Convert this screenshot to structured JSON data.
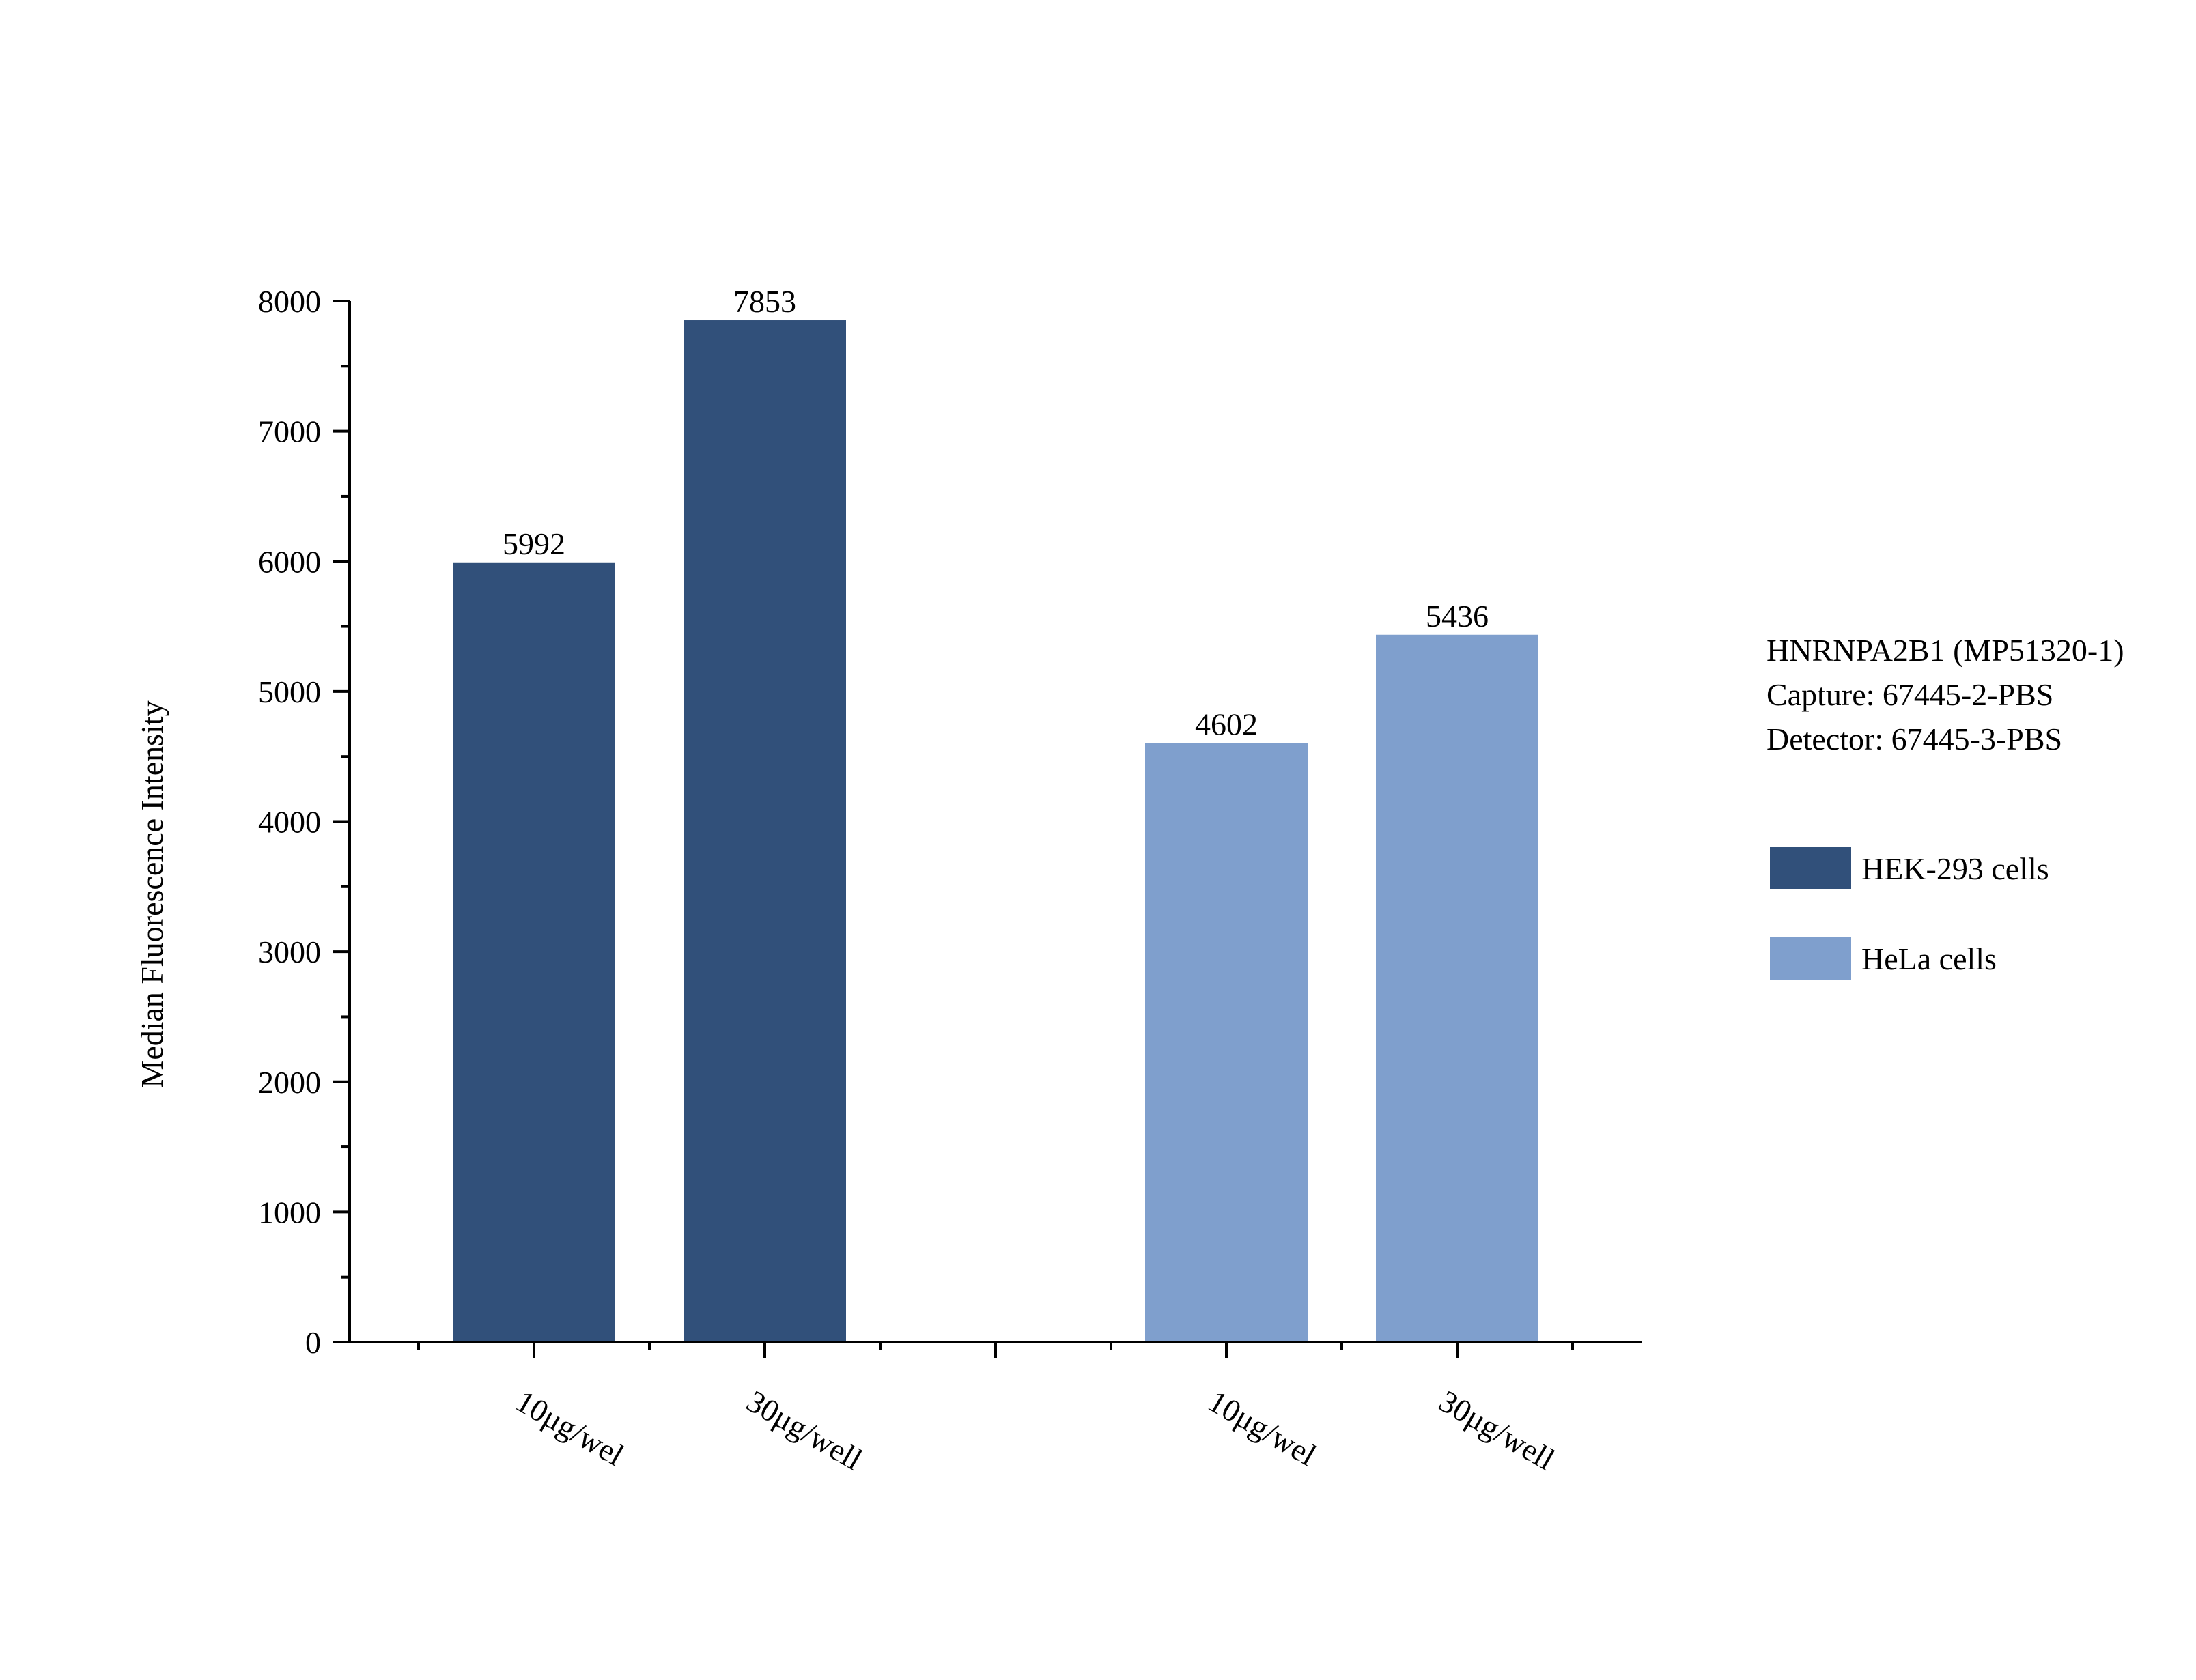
{
  "chart_data": {
    "type": "bar",
    "ylabel": "Median Fluorescence Intensity",
    "xlabel": "",
    "ylim": [
      0,
      8000
    ],
    "yticks": [
      0,
      1000,
      2000,
      3000,
      4000,
      5000,
      6000,
      7000,
      8000
    ],
    "grid": false,
    "legend_placement": "right",
    "annotations": [
      "HNRNPA2B1 (MP51320-1)",
      "Capture: 67445-2-PBS",
      "Detector: 67445-3-PBS"
    ],
    "groups": [
      {
        "name": "HEK-293 cells",
        "color": "#31507a",
        "categories": [
          "10μg/wel",
          "30μg/well"
        ],
        "values": [
          5992,
          7853
        ],
        "value_labels": [
          "5992",
          "7853"
        ]
      },
      {
        "name": "HeLa cells",
        "color": "#7f9fcd",
        "categories": [
          "10μg/wel",
          "30μg/well"
        ],
        "values": [
          4602,
          5436
        ],
        "value_labels": [
          "4602",
          "5436"
        ]
      }
    ]
  }
}
